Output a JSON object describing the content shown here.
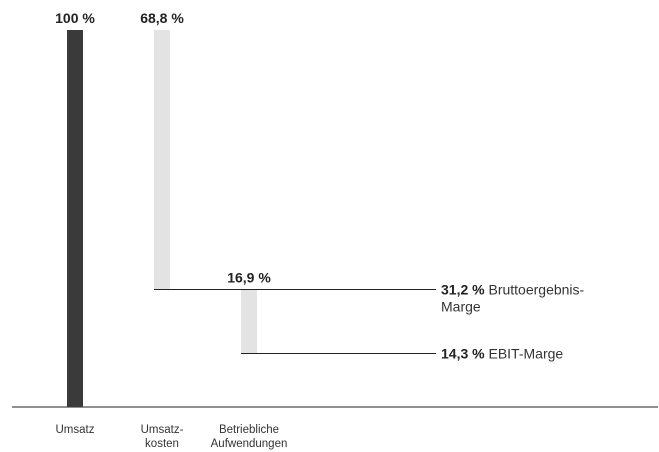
{
  "chart_data": {
    "type": "bar",
    "subtype": "waterfall",
    "ylim": [
      0,
      100
    ],
    "bars": [
      {
        "category_lines": [
          "Umsatz"
        ],
        "value": 100,
        "base": 0,
        "label": "100 %",
        "color": "#3a3a3a"
      },
      {
        "category_lines": [
          "Umsatz-",
          "kosten"
        ],
        "value": 68.8,
        "base": 31.2,
        "label": "68,8 %",
        "color": "#e3e3e3"
      },
      {
        "category_lines": [
          "Betriebliche",
          "Aufwendungen"
        ],
        "value": 16.9,
        "base": 14.3,
        "label": "16,9 %",
        "color": "#e3e3e3"
      }
    ],
    "annotations": [
      {
        "level": 31.2,
        "value_label": "31,2 %",
        "text_lines": [
          "Bruttoergebnis-",
          "Marge"
        ]
      },
      {
        "level": 14.3,
        "value_label": "14,3 %",
        "text_lines": [
          "EBIT-Marge"
        ]
      }
    ],
    "colors": {
      "axis": "#222222",
      "text": "#222222"
    }
  }
}
